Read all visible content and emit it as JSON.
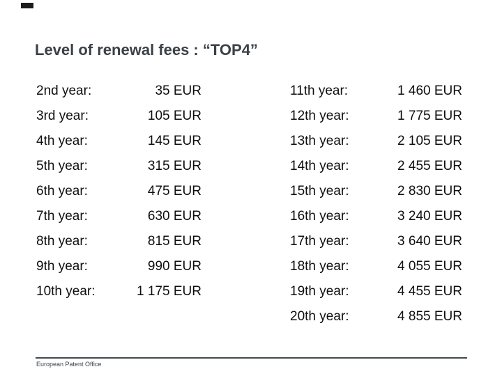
{
  "slide": {
    "title": "Level of renewal fees : “TOP4”",
    "footer": "European Patent Office"
  },
  "colors": {
    "title": "#3a4147",
    "body_text": "#0f0f0f",
    "footer_line": "#43484b",
    "corner_mark": "#1c1c1c"
  },
  "fees": {
    "left": [
      {
        "year": "2nd year:",
        "fee": "35 EUR"
      },
      {
        "year": "3rd year:",
        "fee": "105 EUR"
      },
      {
        "year": "4th year:",
        "fee": "145 EUR"
      },
      {
        "year": "5th year:",
        "fee": "315 EUR"
      },
      {
        "year": "6th year:",
        "fee": "475 EUR"
      },
      {
        "year": "7th year:",
        "fee": "630 EUR"
      },
      {
        "year": "8th year:",
        "fee": "815 EUR"
      },
      {
        "year": "9th year:",
        "fee": "990 EUR"
      },
      {
        "year": "10th year:",
        "fee": "1 175 EUR"
      }
    ],
    "right": [
      {
        "year": "11th year:",
        "fee": "1 460 EUR"
      },
      {
        "year": "12th year:",
        "fee": "1 775 EUR"
      },
      {
        "year": "13th year:",
        "fee": "2 105 EUR"
      },
      {
        "year": "14th year:",
        "fee": "2 455 EUR"
      },
      {
        "year": "15th year:",
        "fee": "2 830 EUR"
      },
      {
        "year": "16th year:",
        "fee": "3 240 EUR"
      },
      {
        "year": "17th year:",
        "fee": "3 640 EUR"
      },
      {
        "year": "18th year:",
        "fee": "4 055 EUR"
      },
      {
        "year": "19th year:",
        "fee": "4 455 EUR"
      },
      {
        "year": "20th year:",
        "fee": "4 855 EUR"
      }
    ]
  }
}
